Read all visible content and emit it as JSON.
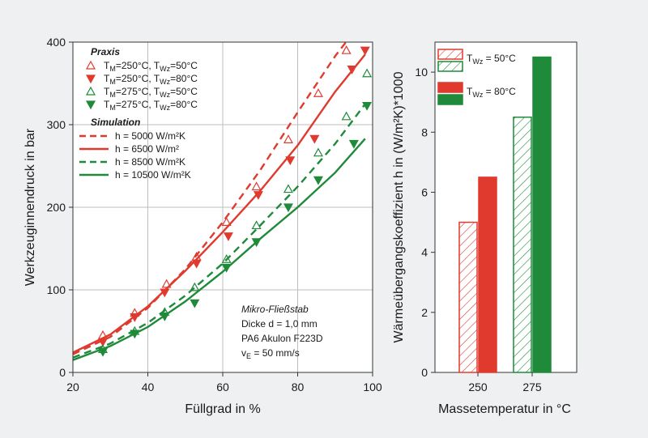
{
  "chart_data": [
    {
      "type": "scatter",
      "xlabel": "Füllgrad in %",
      "ylabel": "Werkzeuginnendruck in bar",
      "xlim": [
        20,
        100
      ],
      "ylim": [
        0,
        400
      ],
      "xticks": [
        "20",
        "40",
        "60",
        "80",
        "100"
      ],
      "yticks": [
        "0",
        "100",
        "200",
        "300",
        "400"
      ],
      "grid": true,
      "legend_placement": "top-left",
      "legend_groups": [
        {
          "title": "Praxis",
          "entries": [
            {
              "main": "T",
              "s1": "M",
              "mid": "=250°C, T",
              "s2": "Wz",
              "end": "=50°C"
            },
            {
              "main": "T",
              "s1": "M",
              "mid": "=250°C, T",
              "s2": "Wz",
              "end": "=80°C"
            },
            {
              "main": "T",
              "s1": "M",
              "mid": "=275°C, T",
              "s2": "Wz",
              "end": "=50°C"
            },
            {
              "main": "T",
              "s1": "M",
              "mid": "=275°C, T",
              "s2": "Wz",
              "end": "=80°C"
            }
          ]
        },
        {
          "title": "Simulation",
          "entries": [
            {
              "main": "h = 5000 W/m²K"
            },
            {
              "main": "h = 6500 W/m²"
            },
            {
              "main": "h = 8500 W/m²K"
            },
            {
              "main": "h = 10500 W/m²K"
            }
          ]
        }
      ],
      "colors": {
        "red": "#e03a2f",
        "green": "#1e8a3a"
      },
      "measured_series": [
        {
          "color": "red",
          "marker": "triangle-up-open",
          "x": [
            28,
            36.5,
            45,
            53,
            61,
            69,
            77.5,
            85.5,
            93,
            98
          ],
          "y": [
            45,
            72,
            107,
            140,
            182,
            225,
            282,
            338,
            390,
            408
          ]
        },
        {
          "color": "red",
          "marker": "triangle-down-filled",
          "x": [
            28,
            36.5,
            44.5,
            53,
            61.5,
            69.5,
            78,
            84.5,
            94.5,
            98
          ],
          "y": [
            37,
            67,
            97,
            132,
            165,
            215,
            257,
            283,
            367,
            390
          ]
        },
        {
          "color": "green",
          "marker": "triangle-up-open",
          "x": [
            28,
            36.5,
            44.5,
            52.5,
            61,
            69,
            77.5,
            85.5,
            93,
            98.5
          ],
          "y": [
            28,
            50,
            73,
            103,
            137,
            178,
            222,
            266,
            310,
            362
          ]
        },
        {
          "color": "green",
          "marker": "triangle-down-filled",
          "x": [
            28,
            36.5,
            44.5,
            52.5,
            61,
            69,
            77.5,
            85.5,
            95,
            98.5
          ],
          "y": [
            25,
            47,
            68,
            84,
            127,
            158,
            200,
            233,
            277,
            323
          ]
        }
      ],
      "simulation_series": [
        {
          "color": "red",
          "dash": true,
          "x": [
            20,
            30,
            40,
            50,
            60,
            70,
            80,
            90,
            98
          ],
          "y": [
            22,
            43,
            78,
            125,
            182,
            245,
            315,
            383,
            430
          ]
        },
        {
          "color": "red",
          "dash": false,
          "x": [
            20,
            30,
            40,
            50,
            60,
            70,
            80,
            90,
            98
          ],
          "y": [
            24,
            46,
            80,
            123,
            170,
            220,
            275,
            340,
            385
          ]
        },
        {
          "color": "green",
          "dash": true,
          "x": [
            20,
            30,
            40,
            50,
            60,
            70,
            80,
            90,
            98
          ],
          "y": [
            18,
            35,
            60,
            93,
            132,
            178,
            225,
            277,
            325
          ]
        },
        {
          "color": "green",
          "dash": false,
          "x": [
            20,
            30,
            40,
            50,
            60,
            70,
            80,
            90,
            98
          ],
          "y": [
            15,
            32,
            55,
            86,
            122,
            162,
            200,
            242,
            283
          ]
        }
      ],
      "annotation": [
        "Mikro-Fließstab",
        "Dicke d = 1,0 mm",
        "PA6 Akulon F223D",
        "50 mm/s"
      ],
      "annotation_v": {
        "main": "v",
        "sub": "E",
        "rest": " = 50 mm/s"
      }
    },
    {
      "type": "bar",
      "xlabel": "Massetemperatur in °C",
      "ylabel": "Wärmeübergangskoeffizient h in (W/m²K)*1000",
      "categories": [
        "250",
        "275"
      ],
      "ylim": [
        0,
        11
      ],
      "yticks": [
        "0",
        "2",
        "4",
        "6",
        "8",
        "10"
      ],
      "legend_placement": "top",
      "series": [
        {
          "name": "T_Wz = 50°C",
          "legend_main": "T",
          "legend_sub": "Wz",
          "legend_rest": " = 50°C",
          "style": "hatched",
          "values": [
            5.0,
            8.5
          ]
        },
        {
          "name": "T_Wz = 80°C",
          "legend_main": "T",
          "legend_sub": "Wz",
          "legend_rest": " = 80°C",
          "style": "filled",
          "values": [
            6.5,
            10.5
          ]
        }
      ],
      "bar_colors": [
        "#e03a2f",
        "#1e8a3a"
      ]
    }
  ]
}
